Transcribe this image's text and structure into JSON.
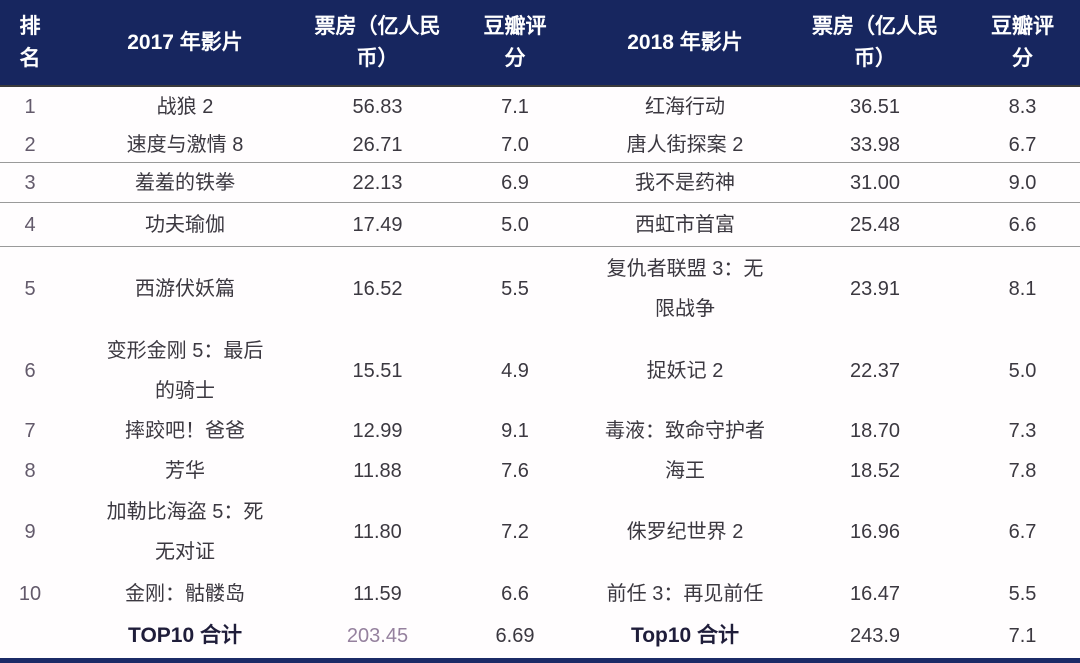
{
  "colors": {
    "header_background": "#17265f",
    "header_text": "#ffffff",
    "body_text": "#3b3840",
    "rank_text": "#635a6b",
    "divider_line": "#9a9a9a",
    "bottom_bar": "#1b2a66",
    "total_2017_boxoffice_text": "#95819e"
  },
  "table": {
    "columns": [
      {
        "label": "排\n名"
      },
      {
        "label": "2017 年影片"
      },
      {
        "label": "票房（亿人民\n币）"
      },
      {
        "label": "豆瓣评\n分"
      },
      {
        "label": "2018 年影片"
      },
      {
        "label": "票房（亿人民\n币）"
      },
      {
        "label": "豆瓣评\n分"
      }
    ],
    "rows": [
      {
        "rank": "1",
        "film_2017": "战狼 2",
        "box_2017": "56.83",
        "score_2017": "7.1",
        "film_2018": "红海行动",
        "box_2018": "36.51",
        "score_2018": "8.3"
      },
      {
        "rank": "2",
        "film_2017": "速度与激情 8",
        "box_2017": "26.71",
        "score_2017": "7.0",
        "film_2018": "唐人街探案 2",
        "box_2018": "33.98",
        "score_2018": "6.7"
      },
      {
        "rank": "3",
        "film_2017": "羞羞的铁拳",
        "box_2017": "22.13",
        "score_2017": "6.9",
        "film_2018": "我不是药神",
        "box_2018": "31.00",
        "score_2018": "9.0"
      },
      {
        "rank": "4",
        "film_2017": "功夫瑜伽",
        "box_2017": "17.49",
        "score_2017": "5.0",
        "film_2018": "西虹市首富",
        "box_2018": "25.48",
        "score_2018": "6.6"
      },
      {
        "rank": "5",
        "film_2017": "西游伏妖篇",
        "box_2017": "16.52",
        "score_2017": "5.5",
        "film_2018": "复仇者联盟 3：无\n限战争",
        "box_2018": "23.91",
        "score_2018": "8.1"
      },
      {
        "rank": "6",
        "film_2017": "变形金刚 5：最后\n的骑士",
        "box_2017": "15.51",
        "score_2017": "4.9",
        "film_2018": "捉妖记 2",
        "box_2018": "22.37",
        "score_2018": "5.0"
      },
      {
        "rank": "7",
        "film_2017": "摔跤吧！爸爸",
        "box_2017": "12.99",
        "score_2017": "9.1",
        "film_2018": "毒液：致命守护者",
        "box_2018": "18.70",
        "score_2018": "7.3"
      },
      {
        "rank": "8",
        "film_2017": "芳华",
        "box_2017": "11.88",
        "score_2017": "7.6",
        "film_2018": "海王",
        "box_2018": "18.52",
        "score_2018": "7.8"
      },
      {
        "rank": "9",
        "film_2017": "加勒比海盗 5：死\n无对证",
        "box_2017": "11.80",
        "score_2017": "7.2",
        "film_2018": "侏罗纪世界 2",
        "box_2018": "16.96",
        "score_2018": "6.7"
      },
      {
        "rank": "10",
        "film_2017": "金刚：骷髅岛",
        "box_2017": "11.59",
        "score_2017": "6.6",
        "film_2018": "前任 3：再见前任",
        "box_2018": "16.47",
        "score_2018": "5.5"
      }
    ],
    "total": {
      "label_2017": "TOP10 合计",
      "box_2017": "203.45",
      "score_2017": "6.69",
      "label_2018": "Top10 合计",
      "box_2018": "243.9",
      "score_2018": "7.1"
    }
  }
}
